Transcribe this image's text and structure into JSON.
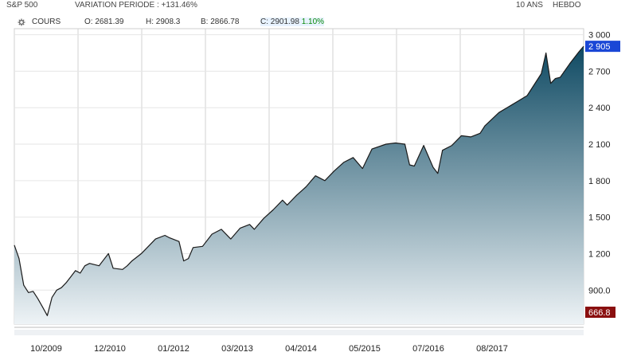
{
  "header": {
    "symbol": "S&P 500",
    "variation": "VARIATION PERIODE : +131.46%",
    "range": "10 ANS",
    "interval": "HEBDO"
  },
  "legend": {
    "series": "COURS",
    "open": "O: 2681.39",
    "high": "H: 2908.3",
    "low": "B: 2866.78",
    "close": "C: 2901.98",
    "change": "1.10%"
  },
  "colors": {
    "line": "#1a1a1a",
    "area_top": "#0f4a63",
    "area_bottom": "#eef3f6",
    "last_price_badge": "#1a47d6",
    "low_price_badge": "#8a0f0f",
    "grid": "#d0d0d0"
  },
  "chart_data": {
    "type": "area",
    "x_tick_labels": [
      "10/2009",
      "12/2010",
      "01/2012",
      "03/2013",
      "04/2014",
      "05/2015",
      "07/2016",
      "08/2017"
    ],
    "y_tick_labels": [
      "3 000",
      "2 700",
      "2 400",
      "2 100",
      "1 800",
      "1 500",
      "1 200",
      "900.0"
    ],
    "y_ticks": [
      3000,
      2700,
      2400,
      2100,
      1800,
      1500,
      1200,
      900
    ],
    "ylim": [
      620,
      3050
    ],
    "x_range": [
      "2008-08",
      "2018-09"
    ],
    "last_price_label": "2 905",
    "last_price": 2905,
    "low_price_label": "666.8",
    "low_price": 666.8,
    "grid": true,
    "series": [
      {
        "x": [
          "2008-08",
          "2008-09",
          "2008-10",
          "2008-11",
          "2008-12",
          "2009-01",
          "2009-02",
          "2009-03",
          "2009-04",
          "2009-05",
          "2009-06",
          "2009-07",
          "2009-08",
          "2009-09",
          "2009-10",
          "2009-11",
          "2009-12",
          "2010-02",
          "2010-04",
          "2010-05",
          "2010-07",
          "2010-08",
          "2010-09",
          "2010-11",
          "2011-01",
          "2011-02",
          "2011-04",
          "2011-05",
          "2011-07",
          "2011-08",
          "2011-09",
          "2011-10",
          "2011-12",
          "2012-02",
          "2012-04",
          "2012-06",
          "2012-08",
          "2012-10",
          "2012-11",
          "2013-01",
          "2013-03",
          "2013-05",
          "2013-06",
          "2013-08",
          "2013-10",
          "2013-12",
          "2014-02",
          "2014-04",
          "2014-06",
          "2014-08",
          "2014-10",
          "2014-12",
          "2015-03",
          "2015-05",
          "2015-07",
          "2015-08",
          "2015-09",
          "2015-11",
          "2016-01",
          "2016-02",
          "2016-03",
          "2016-05",
          "2016-07",
          "2016-09",
          "2016-11",
          "2016-12",
          "2017-03",
          "2017-06",
          "2017-09",
          "2017-12",
          "2018-01",
          "2018-02",
          "2018-03",
          "2018-04",
          "2018-06",
          "2018-08",
          "2018-09"
        ],
        "y": [
          1270,
          1160,
          940,
          880,
          890,
          830,
          760,
          690,
          840,
          900,
          920,
          960,
          1010,
          1060,
          1040,
          1100,
          1120,
          1100,
          1200,
          1080,
          1070,
          1100,
          1140,
          1200,
          1280,
          1320,
          1350,
          1330,
          1300,
          1140,
          1160,
          1250,
          1260,
          1360,
          1400,
          1320,
          1410,
          1440,
          1400,
          1490,
          1560,
          1640,
          1600,
          1680,
          1750,
          1840,
          1800,
          1880,
          1950,
          1990,
          1900,
          2060,
          2100,
          2110,
          2100,
          1930,
          1920,
          2090,
          1910,
          1860,
          2050,
          2090,
          2170,
          2160,
          2190,
          2250,
          2360,
          2430,
          2500,
          2680,
          2850,
          2600,
          2640,
          2650,
          2760,
          2860,
          2905
        ]
      }
    ]
  }
}
